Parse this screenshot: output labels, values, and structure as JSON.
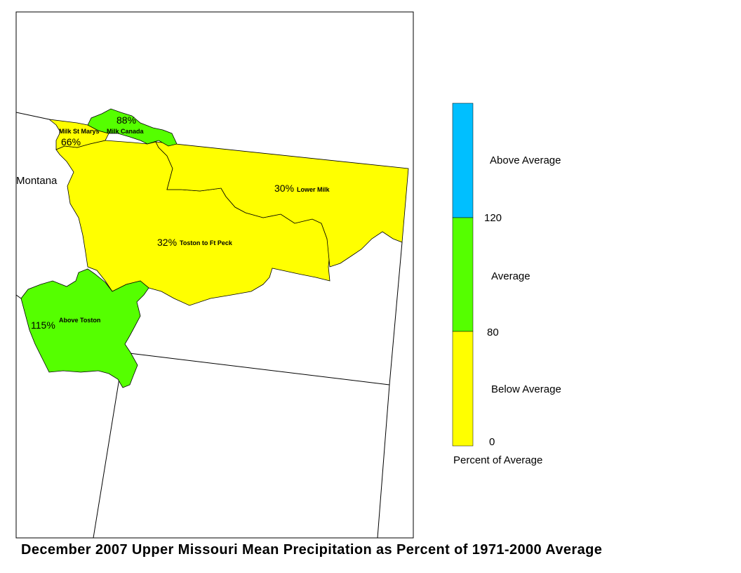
{
  "map": {
    "state_label": "Montana",
    "basins": [
      {
        "id": "milk-st-marys",
        "name": "Milk St Marys",
        "percent": "66%",
        "category": "below"
      },
      {
        "id": "milk-canada",
        "name": "Milk Canada",
        "percent": "88%",
        "category": "average"
      },
      {
        "id": "lower-milk",
        "name": "Lower Milk",
        "percent": "30%",
        "category": "below"
      },
      {
        "id": "toston-ft-peck",
        "name": "Toston to Ft Peck",
        "percent": "32%",
        "category": "below"
      },
      {
        "id": "above-toston",
        "name": "Above Toston",
        "percent": "115%",
        "category": "average"
      }
    ]
  },
  "legend": {
    "title": "Percent of Average",
    "classes": [
      {
        "label": "Above Average",
        "color": "#00bfff"
      },
      {
        "label": "Average",
        "color": "#55ff00"
      },
      {
        "label": "Below Average",
        "color": "#ffff00"
      }
    ],
    "breaks": [
      "120",
      "80",
      "0"
    ]
  },
  "colors": {
    "below": "#ffff00",
    "average": "#55ff00",
    "above": "#00bfff"
  },
  "caption": "December 2007 Upper Missouri Mean Precipitation as Percent of 1971-2000 Average"
}
